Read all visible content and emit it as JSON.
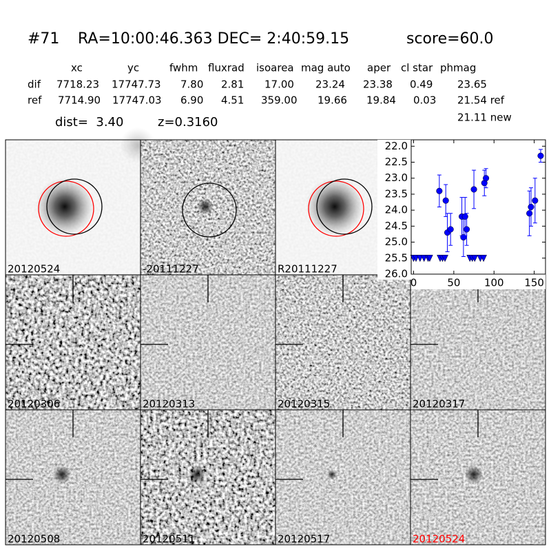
{
  "header": {
    "id": "#71",
    "coords": "RA=10:00:46.363 DEC= 2:40:59.15",
    "score": "score=60.0"
  },
  "table": {
    "columns": [
      "xc",
      "yc",
      "fwhm",
      "fluxrad",
      "isoarea",
      "mag auto",
      "aper",
      "cl star",
      "phmag"
    ],
    "rows": [
      {
        "label": "dif",
        "cells": [
          "7718.23",
          "17747.73",
          "7.80",
          "2.81",
          "17.00",
          "23.24",
          "23.38",
          "0.49",
          "23.65"
        ]
      },
      {
        "label": "ref",
        "cells": [
          "7714.90",
          "17747.03",
          "6.90",
          "4.51",
          "359.00",
          "19.66",
          "19.84",
          "0.03",
          "21.54 ref"
        ]
      }
    ],
    "note": "21.11 new"
  },
  "dist": "dist=  3.40",
  "z": "z=0.3160",
  "stamps": [
    {
      "label": "20120524"
    },
    {
      "label": "-20111227"
    },
    {
      "label": "R20111227"
    },
    {
      "label": "20120306"
    },
    {
      "label": "20120313"
    },
    {
      "label": "20120315"
    },
    {
      "label": "20120317"
    },
    {
      "label": "20120508"
    },
    {
      "label": "20120511"
    },
    {
      "label": "20120517"
    },
    {
      "label": "20120524",
      "color": "#ff0000"
    }
  ],
  "chart_data": {
    "type": "scatter",
    "xlim": [
      -3,
      164
    ],
    "ylim": [
      26.0,
      21.8
    ],
    "xticks": [
      0,
      50,
      100,
      150
    ],
    "yticks": [
      {
        "value": 22,
        "label": "22.0"
      },
      22.5,
      {
        "value": 23,
        "label": "23.0"
      },
      23.5,
      {
        "value": 24,
        "label": "24.0"
      },
      24.5,
      {
        "value": 25,
        "label": "25.0"
      },
      25.5,
      {
        "value": 26,
        "label": "26.0"
      }
    ],
    "series": [
      {
        "marker": "o",
        "color": "#0000ff",
        "x": [
          32,
          40,
          42,
          46,
          60,
          62,
          64,
          66,
          75,
          88,
          90,
          144,
          146,
          151,
          158
        ],
        "values": [
          23.4,
          23.7,
          24.7,
          24.6,
          24.2,
          24.85,
          24.2,
          24.6,
          23.35,
          23.15,
          23.0,
          24.1,
          23.9,
          23.7,
          22.3
        ],
        "errors": [
          0.5,
          0.5,
          0.6,
          0.5,
          0.6,
          0.6,
          0.6,
          0.5,
          0.6,
          0.4,
          0.3,
          0.7,
          0.6,
          0.7,
          0.2
        ]
      },
      {
        "marker": "v",
        "color": "#0000ff",
        "x": [
          0,
          3,
          8,
          13,
          18,
          20,
          33,
          36,
          39,
          70,
          73,
          76,
          83,
          87
        ],
        "values": [
          25.5,
          25.5,
          25.5,
          25.5,
          25.5,
          25.5,
          25.5,
          25.5,
          25.5,
          25.5,
          25.5,
          25.5,
          25.5,
          25.5
        ]
      }
    ]
  }
}
